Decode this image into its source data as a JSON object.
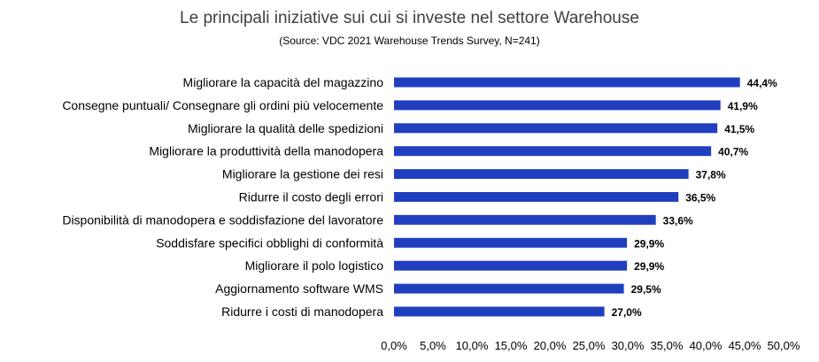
{
  "chart_data": {
    "type": "bar",
    "orientation": "horizontal",
    "title": "Le principali iniziative sui cui si investe nel settore Warehouse",
    "subtitle": "(Source: VDC 2021 Warehouse Trends Survey, N=241)",
    "categories": [
      "Migliorare la capacità del magazzino",
      "Consegne puntuali/ Consegnare gli ordini più velocemente",
      "Migliorare la qualità delle spedizioni",
      "Migliorare la produttività della manodopera",
      "Migliorare la gestione dei resi",
      "Ridurre il costo degli errori",
      "Disponibilità di manodopera e soddisfazione del lavoratore",
      "Soddisfare specifici obblighi di conformità",
      "Migliorare il polo logistico",
      "Aggiornamento software WMS",
      "Ridurre i costi di manodopera"
    ],
    "values": [
      44.4,
      41.9,
      41.5,
      40.7,
      37.8,
      36.5,
      33.6,
      29.9,
      29.9,
      29.5,
      27.0
    ],
    "value_labels": [
      "44,4%",
      "41,9%",
      "41,5%",
      "40,7%",
      "37,8%",
      "36,5%",
      "33,6%",
      "29,9%",
      "29,9%",
      "29,5%",
      "27,0%"
    ],
    "xlim": [
      0,
      50
    ],
    "x_ticks": [
      "0,0%",
      "5,0%",
      "10,0%",
      "15,0%",
      "20,0%",
      "25,0%",
      "30,0%",
      "35,0%",
      "40,0%",
      "45,0%",
      "50,0%"
    ],
    "bar_color": "#1f3fbf",
    "grid": false,
    "legend": "none"
  }
}
